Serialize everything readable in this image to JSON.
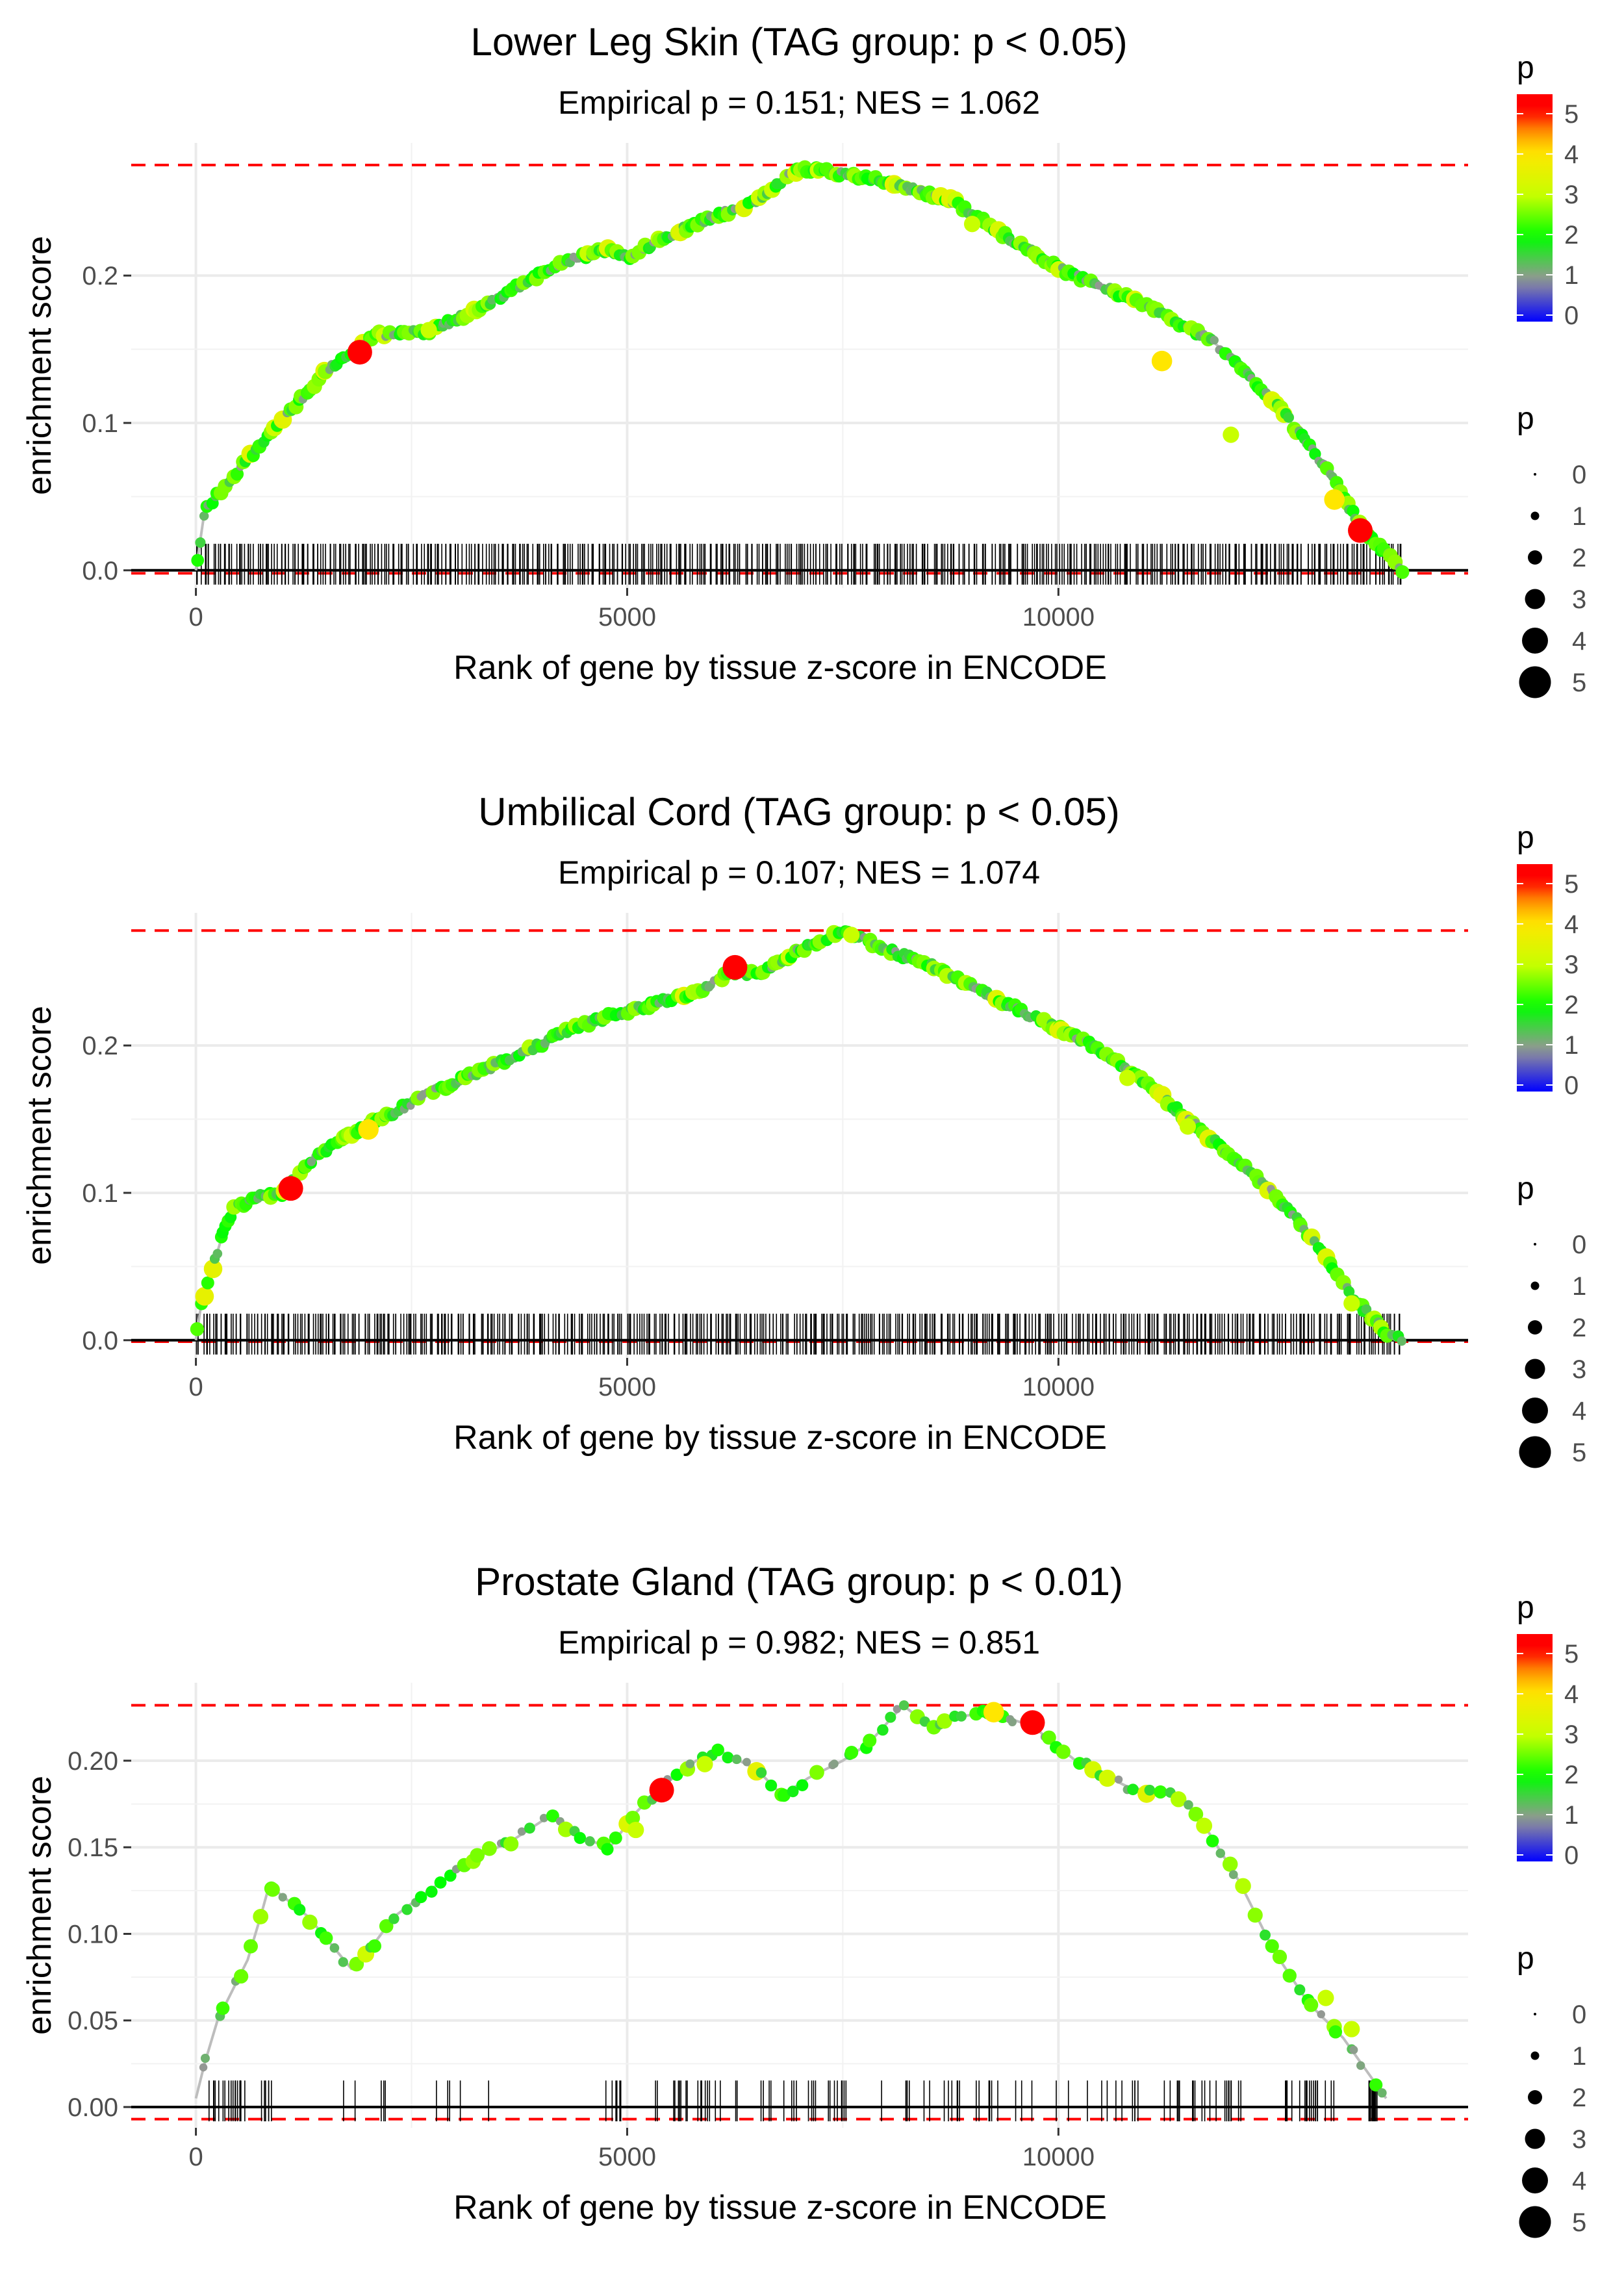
{
  "chart_data": [
    {
      "type": "line",
      "title": "Lower Leg Skin (TAG group: p < 0.05)",
      "subtitle": "Empirical p = 0.151; NES = 1.062",
      "xlabel": "Rank of gene by tissue z-score in ENCODE",
      "ylabel": "enrichment score",
      "xlim": [
        -750,
        14750
      ],
      "ylim": [
        -0.012,
        0.29
      ],
      "x_ticks": [
        0,
        5000,
        10000
      ],
      "x_tick_labels": [
        "0",
        "5000",
        "10000"
      ],
      "y_ticks": [
        0.0,
        0.1,
        0.2
      ],
      "y_tick_labels": [
        "0.0",
        "0.1",
        "0.2"
      ],
      "max_es": 0.275,
      "min_es": -0.002,
      "n_genes": 14000,
      "rug_count": 520,
      "rug_distribution": "dense",
      "curve": [
        [
          0,
          0
        ],
        [
          50,
          0.02
        ],
        [
          100,
          0.04
        ],
        [
          300,
          0.055
        ],
        [
          600,
          0.075
        ],
        [
          900,
          0.095
        ],
        [
          1200,
          0.115
        ],
        [
          1500,
          0.135
        ],
        [
          1800,
          0.148
        ],
        [
          2100,
          0.16
        ],
        [
          2700,
          0.162
        ],
        [
          3300,
          0.178
        ],
        [
          3800,
          0.195
        ],
        [
          4300,
          0.21
        ],
        [
          4800,
          0.218
        ],
        [
          5000,
          0.212
        ],
        [
          5400,
          0.225
        ],
        [
          6000,
          0.24
        ],
        [
          6500,
          0.25
        ],
        [
          6800,
          0.265
        ],
        [
          7000,
          0.273
        ],
        [
          7400,
          0.27
        ],
        [
          8000,
          0.264
        ],
        [
          8800,
          0.25
        ],
        [
          9300,
          0.23
        ],
        [
          10000,
          0.205
        ],
        [
          11000,
          0.18
        ],
        [
          11800,
          0.155
        ],
        [
          12500,
          0.115
        ],
        [
          13100,
          0.07
        ],
        [
          13500,
          0.03
        ],
        [
          13900,
          0.005
        ],
        [
          14000,
          0
        ]
      ],
      "highlights": [
        {
          "x": 1900,
          "y": 0.148,
          "p": 5
        },
        {
          "x": 13500,
          "y": 0.027,
          "p": 5
        },
        {
          "x": 13200,
          "y": 0.048,
          "p": 4
        },
        {
          "x": 11200,
          "y": 0.142,
          "p": 4
        },
        {
          "x": 2700,
          "y": 0.163,
          "p": 3
        },
        {
          "x": 9000,
          "y": 0.235,
          "p": 3
        },
        {
          "x": 12000,
          "y": 0.092,
          "p": 3
        }
      ],
      "legend": {
        "color_title": "p",
        "color_ticks": [
          "0",
          "1",
          "2",
          "3",
          "4",
          "5"
        ],
        "size_title": "p",
        "size_labels": [
          "0",
          "1",
          "2",
          "3",
          "4",
          "5"
        ]
      },
      "reference_lines": "red dashed at max and min enrichment score"
    },
    {
      "type": "line",
      "title": "Umbilical Cord (TAG group: p < 0.05)",
      "subtitle": "Empirical p = 0.107; NES = 1.074",
      "xlabel": "Rank of gene by tissue z-score in ENCODE",
      "ylabel": "enrichment score",
      "xlim": [
        -750,
        14750
      ],
      "ylim": [
        -0.012,
        0.29
      ],
      "x_ticks": [
        0,
        5000,
        10000
      ],
      "x_tick_labels": [
        "0",
        "5000",
        "10000"
      ],
      "y_ticks": [
        0.0,
        0.1,
        0.2
      ],
      "y_tick_labels": [
        "0.0",
        "0.1",
        "0.2"
      ],
      "max_es": 0.278,
      "min_es": -0.001,
      "n_genes": 14000,
      "rug_count": 520,
      "rug_distribution": "dense",
      "curve": [
        [
          0,
          0
        ],
        [
          50,
          0.02
        ],
        [
          150,
          0.04
        ],
        [
          300,
          0.07
        ],
        [
          450,
          0.09
        ],
        [
          700,
          0.097
        ],
        [
          1000,
          0.1
        ],
        [
          1300,
          0.12
        ],
        [
          1800,
          0.14
        ],
        [
          2300,
          0.155
        ],
        [
          2800,
          0.17
        ],
        [
          3400,
          0.185
        ],
        [
          3800,
          0.195
        ],
        [
          4300,
          0.21
        ],
        [
          4800,
          0.22
        ],
        [
          5300,
          0.228
        ],
        [
          5800,
          0.236
        ],
        [
          6200,
          0.25
        ],
        [
          6500,
          0.248
        ],
        [
          7000,
          0.265
        ],
        [
          7500,
          0.278
        ],
        [
          8000,
          0.265
        ],
        [
          8500,
          0.255
        ],
        [
          9000,
          0.24
        ],
        [
          9700,
          0.22
        ],
        [
          10400,
          0.2
        ],
        [
          11000,
          0.175
        ],
        [
          11800,
          0.135
        ],
        [
          12500,
          0.1
        ],
        [
          13000,
          0.065
        ],
        [
          13400,
          0.03
        ],
        [
          13800,
          0.005
        ],
        [
          14000,
          0
        ]
      ],
      "highlights": [
        {
          "x": 1100,
          "y": 0.103,
          "p": 5
        },
        {
          "x": 6250,
          "y": 0.253,
          "p": 5
        },
        {
          "x": 2000,
          "y": 0.143,
          "p": 4
        },
        {
          "x": 10800,
          "y": 0.178,
          "p": 3
        },
        {
          "x": 11500,
          "y": 0.145,
          "p": 3
        },
        {
          "x": 13400,
          "y": 0.025,
          "p": 3
        },
        {
          "x": 7600,
          "y": 0.275,
          "p": 3
        }
      ],
      "legend": {
        "color_title": "p",
        "color_ticks": [
          "0",
          "1",
          "2",
          "3",
          "4",
          "5"
        ],
        "size_title": "p",
        "size_labels": [
          "0",
          "1",
          "2",
          "3",
          "4",
          "5"
        ]
      },
      "reference_lines": "red dashed at max and min enrichment score"
    },
    {
      "type": "line",
      "title": "Prostate Gland (TAG group: p < 0.01)",
      "subtitle": "Empirical p = 0.982; NES = 0.851",
      "xlabel": "Rank of gene by tissue z-score in ENCODE",
      "ylabel": "enrichment score",
      "xlim": [
        -750,
        14750
      ],
      "ylim": [
        -0.012,
        0.245
      ],
      "x_ticks": [
        0,
        5000,
        10000
      ],
      "x_tick_labels": [
        "0",
        "5000",
        "10000"
      ],
      "y_ticks": [
        0.0,
        0.05,
        0.1,
        0.15,
        0.2
      ],
      "y_tick_labels": [
        "0.00",
        "0.05",
        "0.10",
        "0.15",
        "0.20"
      ],
      "max_es": 0.232,
      "min_es": -0.007,
      "n_genes": 14000,
      "rug_count": 170,
      "rug_distribution": "sparse",
      "curve": [
        [
          0,
          0.005
        ],
        [
          100,
          0.025
        ],
        [
          250,
          0.05
        ],
        [
          400,
          0.065
        ],
        [
          600,
          0.085
        ],
        [
          750,
          0.11
        ],
        [
          850,
          0.128
        ],
        [
          1300,
          0.11
        ],
        [
          1800,
          0.08
        ],
        [
          2000,
          0.09
        ],
        [
          2300,
          0.11
        ],
        [
          2700,
          0.125
        ],
        [
          3000,
          0.135
        ],
        [
          3300,
          0.145
        ],
        [
          3700,
          0.155
        ],
        [
          4100,
          0.168
        ],
        [
          4500,
          0.155
        ],
        [
          4800,
          0.15
        ],
        [
          5100,
          0.17
        ],
        [
          5400,
          0.185
        ],
        [
          5800,
          0.2
        ],
        [
          6100,
          0.205
        ],
        [
          6500,
          0.195
        ],
        [
          6800,
          0.18
        ],
        [
          7100,
          0.19
        ],
        [
          7500,
          0.2
        ],
        [
          7800,
          0.21
        ],
        [
          8200,
          0.232
        ],
        [
          8500,
          0.22
        ],
        [
          8800,
          0.225
        ],
        [
          9200,
          0.228
        ],
        [
          9700,
          0.22
        ],
        [
          10200,
          0.2
        ],
        [
          10800,
          0.185
        ],
        [
          11300,
          0.18
        ],
        [
          11600,
          0.17
        ],
        [
          12100,
          0.13
        ],
        [
          12500,
          0.09
        ],
        [
          12900,
          0.06
        ],
        [
          13300,
          0.04
        ],
        [
          13800,
          0.005
        ]
      ],
      "highlights": [
        {
          "x": 5400,
          "y": 0.183,
          "p": 5
        },
        {
          "x": 9700,
          "y": 0.222,
          "p": 5
        },
        {
          "x": 9250,
          "y": 0.228,
          "p": 4
        },
        {
          "x": 5100,
          "y": 0.16,
          "p": 3
        },
        {
          "x": 13100,
          "y": 0.063,
          "p": 3
        },
        {
          "x": 13400,
          "y": 0.045,
          "p": 3
        },
        {
          "x": 5900,
          "y": 0.198,
          "p": 3
        }
      ],
      "legend": {
        "color_title": "p",
        "color_ticks": [
          "0",
          "1",
          "2",
          "3",
          "4",
          "5"
        ],
        "size_title": "p",
        "size_labels": [
          "0",
          "1",
          "2",
          "3",
          "4",
          "5"
        ]
      },
      "reference_lines": "red dashed at max and min enrichment score"
    }
  ]
}
